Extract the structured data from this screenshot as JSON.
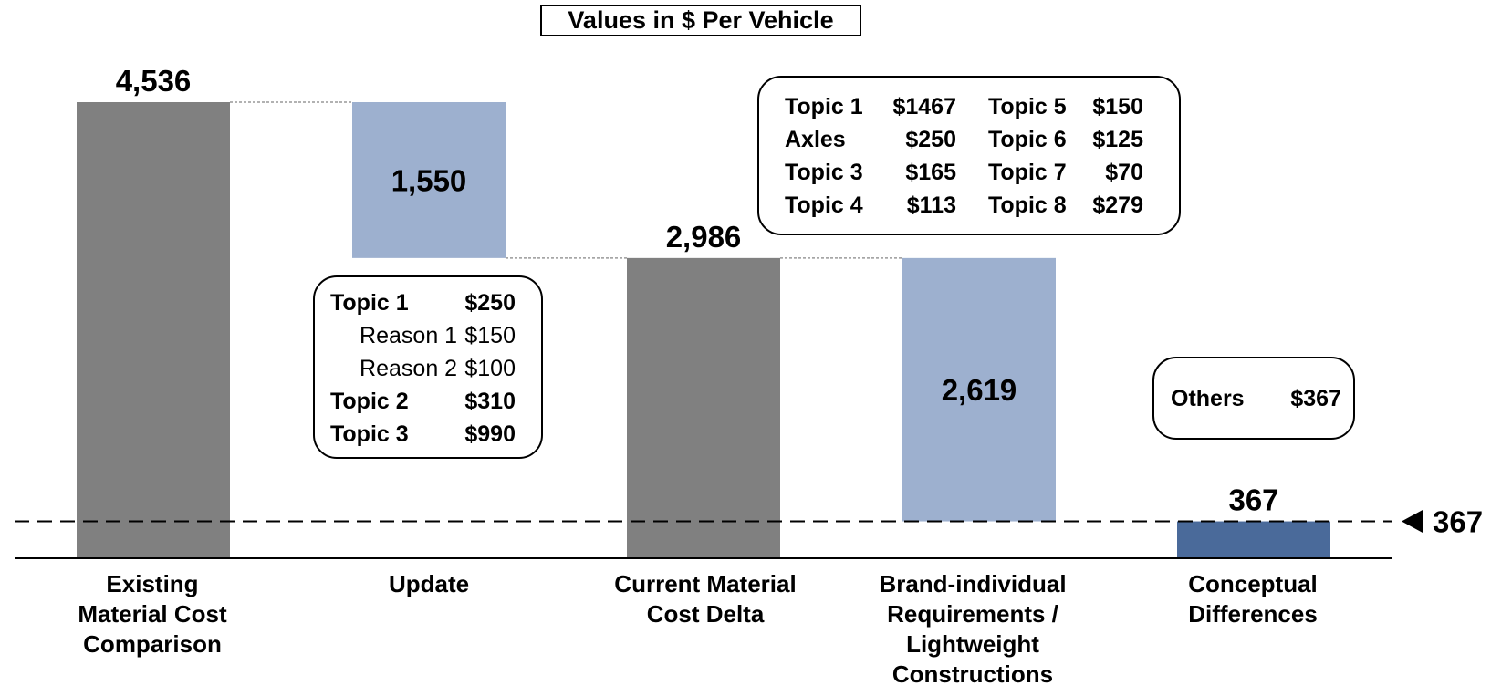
{
  "title": "Values in $ Per Vehicle",
  "chart_data": {
    "type": "waterfall",
    "ylim": [
      0,
      4600
    ],
    "grid": false,
    "steps": [
      {
        "label": "Existing\nMaterial Cost\nComparison",
        "kind": "total",
        "value": 4536,
        "display": "4,536",
        "color": "#808080"
      },
      {
        "label": "Update",
        "kind": "decrease",
        "value": 1550,
        "display": "1,550",
        "color": "#9db0cf"
      },
      {
        "label": "Current Material\nCost Delta",
        "kind": "total",
        "value": 2986,
        "display": "2,986",
        "color": "#808080"
      },
      {
        "label": "Brand-individual\nRequirements /\nLightweight\nConstructions",
        "kind": "decrease",
        "value": 2619,
        "display": "2,619",
        "color": "#9db0cf"
      },
      {
        "label": "Conceptual\nDifferences",
        "kind": "total",
        "value": 367,
        "display": "367",
        "color": "#4a6a9a"
      }
    ],
    "reference_line": {
      "value": 367,
      "label": "367",
      "style": "dashed"
    }
  },
  "callouts": {
    "update": [
      {
        "name": "Topic 1",
        "value": "$250",
        "bold": true
      },
      {
        "name": "Reason 1",
        "value": "$150",
        "bold": false
      },
      {
        "name": "Reason 2",
        "value": "$100",
        "bold": false
      },
      {
        "name": "Topic 2",
        "value": "$310",
        "bold": true
      },
      {
        "name": "Topic 3",
        "value": "$990",
        "bold": true
      }
    ],
    "brand": {
      "left": [
        {
          "name": "Topic 1",
          "value": "$1467"
        },
        {
          "name": "Axles",
          "value": "$250"
        },
        {
          "name": "Topic 3",
          "value": "$165"
        },
        {
          "name": "Topic 4",
          "value": "$113"
        }
      ],
      "right": [
        {
          "name": "Topic 5",
          "value": "$150"
        },
        {
          "name": "Topic 6",
          "value": "$125"
        },
        {
          "name": "Topic 7",
          "value": "$70"
        },
        {
          "name": "Topic 8",
          "value": "$279"
        }
      ]
    },
    "others": {
      "name": "Others",
      "value": "$367"
    }
  }
}
